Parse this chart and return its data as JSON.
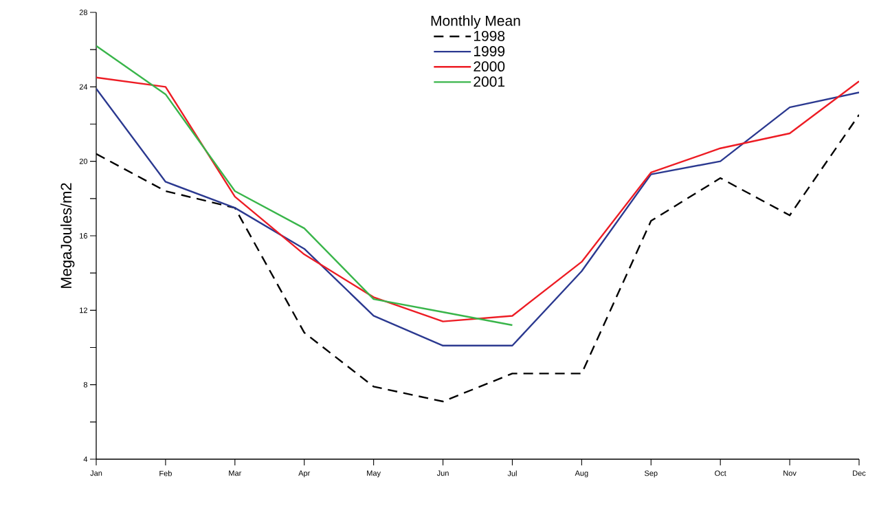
{
  "chart_data": {
    "type": "line",
    "ylabel": "MegaJoules/m2",
    "legend_title": "Monthly Mean",
    "legend": "top",
    "categories": [
      "Jan",
      "Feb",
      "Mar",
      "Apr",
      "May",
      "Jun",
      "Jul",
      "Aug",
      "Sep",
      "Oct",
      "Nov",
      "Dec"
    ],
    "ylim": [
      4,
      28
    ],
    "yticks": [
      4,
      8,
      12,
      16,
      20,
      24,
      28
    ],
    "series": [
      {
        "name": "1998",
        "color": "#000000",
        "line_style": "dashed",
        "values": [
          20.4,
          18.4,
          17.5,
          10.8,
          7.9,
          7.1,
          8.6,
          8.6,
          16.8,
          19.1,
          17.1,
          22.5
        ]
      },
      {
        "name": "1999",
        "color": "#2b3990",
        "line_style": "solid",
        "values": [
          23.9,
          18.9,
          17.5,
          15.3,
          11.7,
          10.1,
          10.1,
          14.1,
          19.3,
          20.0,
          22.9,
          23.7
        ]
      },
      {
        "name": "2000",
        "color": "#ed1c24",
        "line_style": "solid",
        "values": [
          24.5,
          24.0,
          18.1,
          15.0,
          12.7,
          11.4,
          11.7,
          14.6,
          19.4,
          20.7,
          21.5,
          24.3
        ]
      },
      {
        "name": "2001",
        "color": "#39b54a",
        "line_style": "solid",
        "values": [
          26.2,
          23.6,
          18.4,
          16.4,
          12.6,
          11.9,
          11.2,
          null,
          null,
          null,
          null,
          null
        ]
      }
    ]
  }
}
